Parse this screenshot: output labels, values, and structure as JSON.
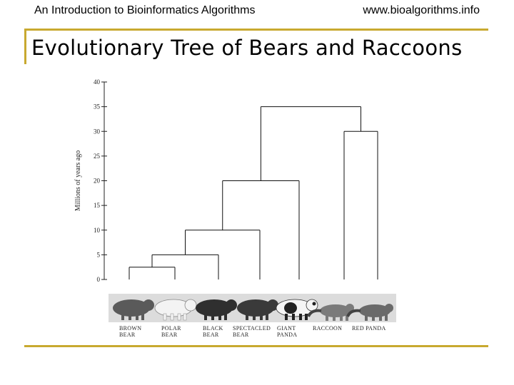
{
  "header": {
    "left": "An Introduction to Bioinformatics Algorithms",
    "right": "www.bioalgorithms.info"
  },
  "slide": {
    "title": "Evolutionary Tree of Bears and Raccoons"
  },
  "chart_data": {
    "type": "dendrogram",
    "ylabel": "Millions of years ago",
    "ylim": [
      0,
      40
    ],
    "yticks": [
      0,
      5,
      10,
      15,
      20,
      25,
      30,
      35,
      40
    ],
    "leaves": [
      {
        "id": "brown",
        "line1": "BROWN",
        "line2": "BEAR"
      },
      {
        "id": "polar",
        "line1": "POLAR",
        "line2": "BEAR"
      },
      {
        "id": "black",
        "line1": "BLACK",
        "line2": "BEAR"
      },
      {
        "id": "spectacled",
        "line1": "SPECTACLED",
        "line2": "BEAR"
      },
      {
        "id": "panda",
        "line1": "GIANT",
        "line2": "PANDA"
      },
      {
        "id": "raccoon",
        "line1": "RACCOON",
        "line2": ""
      },
      {
        "id": "redpanda",
        "line1": "RED PANDA",
        "line2": ""
      }
    ],
    "merges": [
      {
        "id": "n1",
        "children": [
          "brown",
          "polar"
        ],
        "height": 2.5
      },
      {
        "id": "n2",
        "children": [
          "n1",
          "black"
        ],
        "height": 5
      },
      {
        "id": "n3",
        "children": [
          "n2",
          "spectacled"
        ],
        "height": 10
      },
      {
        "id": "n4",
        "children": [
          "n3",
          "panda"
        ],
        "height": 20
      },
      {
        "id": "n5",
        "children": [
          "raccoon",
          "redpanda"
        ],
        "height": 30
      },
      {
        "id": "n6",
        "children": [
          "n4",
          "n5"
        ],
        "height": 35
      }
    ]
  }
}
